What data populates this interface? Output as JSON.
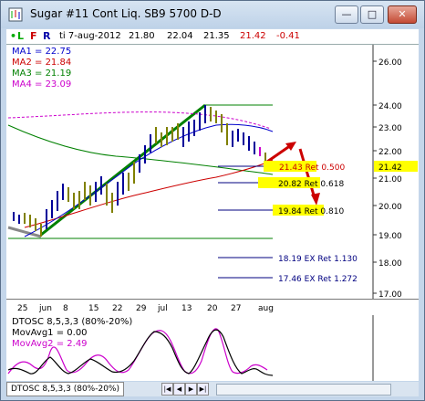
{
  "window": {
    "title": "Sugar #11 Cont Liq. SB9 5700 D-D",
    "minimize_label": "—",
    "maximize_label": "□",
    "close_label": "✕"
  },
  "toolbar": {
    "l_label": "L",
    "f_label": "F",
    "r_label": "R",
    "date": "ti 7-aug-2012",
    "open": "21.80",
    "high": "22.04",
    "low": "21.35",
    "close": "21.42",
    "change": "-0.41"
  },
  "legend": {
    "ma1": "MA1 = 22.75",
    "ma2": "MA2 = 21.84",
    "ma3": "MA3 = 21.19",
    "ma4": "MA4 = 23.09"
  },
  "colors": {
    "ma1": "#0000cc",
    "ma2": "#cc0000",
    "ma3": "#008000",
    "ma4": "#cc00cc",
    "up_bar": "#000099",
    "down_bar": "#808000",
    "trend_line": "#008000",
    "arrow": "#cc0000",
    "highlight": "#ffff00",
    "fib_line": "#000080",
    "negative": "#cc0000"
  },
  "price_axis": {
    "ticks": [
      "26.00",
      "25.00",
      "24.00",
      "23.00",
      "22.00",
      "21.00",
      "20.00",
      "19.00",
      "18.00",
      "17.00"
    ],
    "current": "21.42"
  },
  "fib_levels": [
    {
      "label": "21.43 Ret 0.500",
      "highlight": true
    },
    {
      "label": "20.82 Ret 0.618",
      "highlight": true
    },
    {
      "label": "19.84 Ret 0.810",
      "highlight": true
    },
    {
      "label": "18.19 EX Ret 1.130",
      "highlight": false
    },
    {
      "label": "17.46 EX Ret 1.272",
      "highlight": false
    }
  ],
  "date_axis": {
    "labels": [
      "25",
      "jun",
      "8",
      "15",
      "22",
      "29",
      "jul",
      "13",
      "20",
      "27",
      "aug"
    ]
  },
  "oscillator": {
    "title": "DTOSC 8,5,3,3 (80%-20%)",
    "movavg1": "MovAvg1 = 0.00",
    "movavg2": "MovAvg2 = 2.49"
  },
  "bottom": {
    "tab_label": "DTOSC 8,5,3,3 (80%-20%)"
  }
}
